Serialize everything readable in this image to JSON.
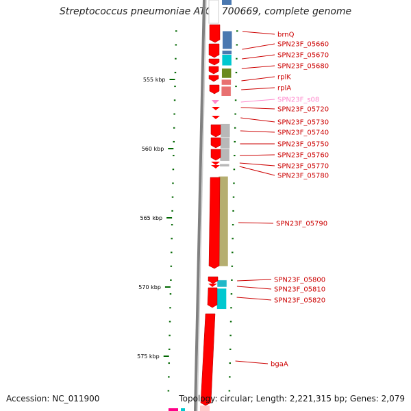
{
  "title": "Streptococcus pneumoniae ATCC 700669, complete genome",
  "footer": {
    "accession": "Accession: NC_011900",
    "info": "Topology: circular; Length: 2,221,315 bp; Genes: 2,079"
  },
  "scale": {
    "unit_kbp_start": 551.5,
    "unit_kbp_end": 578.5,
    "ticks": [
      {
        "kbp": 555,
        "label": "555 kbp"
      },
      {
        "kbp": 560,
        "label": "560 kbp"
      },
      {
        "kbp": 565,
        "label": "565 kbp"
      },
      {
        "kbp": 570,
        "label": "570 kbp"
      },
      {
        "kbp": 575,
        "label": "575 kbp"
      }
    ]
  },
  "genes": [
    {
      "name": "brnQ",
      "label_color": "#cc0000",
      "box_color": "#4a78b0",
      "box_start": 551.5,
      "box_end": 552.8
    },
    {
      "name": "SPN23F_05660",
      "label_color": "#cc0000",
      "box_color": "#4a78b0",
      "box_start": 552.9,
      "box_end": 553.2
    },
    {
      "name": "SPN23F_05670",
      "label_color": "#cc0000",
      "box_color": "#00c8d0",
      "box_start": 553.2,
      "box_end": 554.0
    },
    {
      "name": "SPN23F_05680",
      "label_color": "#cc0000",
      "box_color": "#6a8a20",
      "box_start": 554.2,
      "box_end": 554.9
    },
    {
      "name": "rplK",
      "label_color": "#cc0000",
      "box_color": "#e87070",
      "box_start": 555.0,
      "box_end": 555.4
    },
    {
      "name": "rplA",
      "label_color": "#cc0000",
      "box_color": "#e87070",
      "box_start": 555.5,
      "box_end": 556.2
    },
    {
      "name": "SPN23F_s08",
      "label_color": "#ff88cc",
      "box_color": "",
      "box_start": 0,
      "box_end": 0
    },
    {
      "name": "SPN23F_05720",
      "label_color": "#cc0000",
      "box_color": "",
      "box_start": 0,
      "box_end": 0
    },
    {
      "name": "SPN23F_05730",
      "label_color": "#cc0000",
      "box_color": "",
      "box_start": 0,
      "box_end": 0
    },
    {
      "name": "SPN23F_05740",
      "label_color": "#cc0000",
      "box_color": "#b8b8b8",
      "box_start": 558.2,
      "box_end": 559.2
    },
    {
      "name": "SPN23F_05750",
      "label_color": "#cc0000",
      "box_color": "#b8b8b8",
      "box_start": 559.2,
      "box_end": 560.0
    },
    {
      "name": "SPN23F_05760",
      "label_color": "#cc0000",
      "box_color": "#b8b8b8",
      "box_start": 560.0,
      "box_end": 560.9
    },
    {
      "name": "SPN23F_05770",
      "label_color": "#cc0000",
      "box_color": "#b8b8b8",
      "box_start": 561.1,
      "box_end": 561.3
    },
    {
      "name": "SPN23F_05780",
      "label_color": "#cc0000",
      "box_color": "",
      "box_start": 0,
      "box_end": 0
    },
    {
      "name": "SPN23F_05790",
      "label_color": "#cc0000",
      "box_color": "#b5ae70",
      "box_start": 562.0,
      "box_end": 568.5
    },
    {
      "name": "SPN23F_05800",
      "label_color": "#cc0000",
      "box_color": "#30b030",
      "box_start": 569.5,
      "box_end": 570.0
    },
    {
      "name": "SPN23F_05810",
      "label_color": "#cc0000",
      "box_color": "#20b8c8",
      "box_start": 569.5,
      "box_end": 570.0
    },
    {
      "name": "SPN23F_05820",
      "label_color": "#cc0000",
      "box_color": "#00c8d0",
      "box_start": 570.1,
      "box_end": 571.6
    },
    {
      "name": "bgaA",
      "label_color": "#cc0000",
      "box_color": "",
      "box_start": 0,
      "box_end": 0
    }
  ],
  "colors": {
    "gene_fill": "#ff0000",
    "gene_stroke": "#aa0000",
    "backbone": "#808080",
    "tick": "#006600",
    "label_line_red": "#cc0000",
    "label_line_pink": "#ff88cc"
  }
}
